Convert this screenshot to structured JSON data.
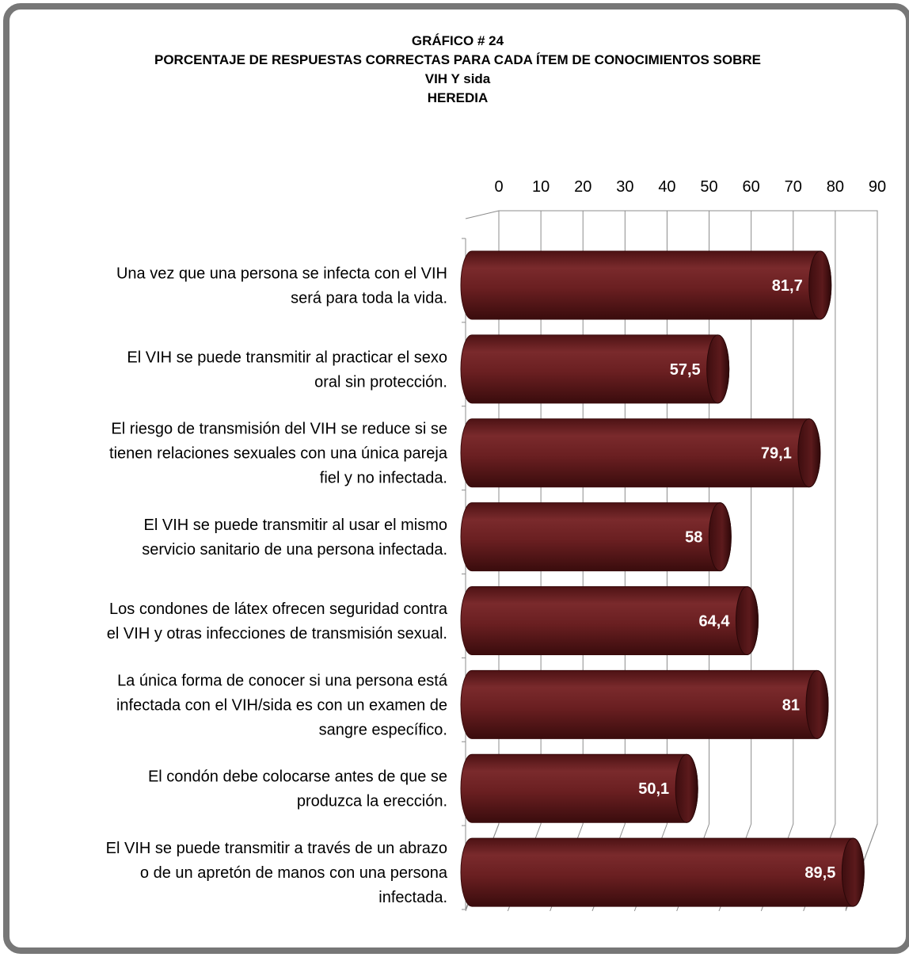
{
  "title_lines": [
    "GRÁFICO # 24",
    "PORCENTAJE DE RESPUESTAS CORRECTAS PARA CADA ÍTEM DE CONOCIMIENTOS SOBRE",
    "VIH Y sida",
    "HEREDIA"
  ],
  "chart_data": {
    "type": "bar",
    "orientation": "horizontal",
    "style": "3d-cylinder",
    "bar_color": "#6e1f22",
    "xlim": [
      0,
      90
    ],
    "ticks": [
      "0",
      "10",
      "20",
      "30",
      "40",
      "50",
      "60",
      "70",
      "80",
      "90"
    ],
    "tick_values": [
      0,
      10,
      20,
      30,
      40,
      50,
      60,
      70,
      80,
      90
    ],
    "axis_position": "top",
    "grid": true,
    "legend": "none",
    "categories": [
      [
        "Una vez que una persona se infecta con el VIH",
        "será para toda la vida."
      ],
      [
        "El VIH se puede transmitir al practicar el sexo",
        "oral sin protección."
      ],
      [
        "El riesgo de transmisión del VIH se reduce si se",
        "tienen relaciones sexuales con una única pareja",
        "fiel y no infectada."
      ],
      [
        "El VIH se puede transmitir al usar el mismo",
        "servicio sanitario de una persona infectada."
      ],
      [
        "Los condones de látex ofrecen seguridad contra",
        "el VIH y otras infecciones de transmisión sexual."
      ],
      [
        "La única forma de conocer si una persona está",
        "infectada con el VIH/sida es con un examen de",
        "sangre específico."
      ],
      [
        "El condón debe colocarse antes de que se",
        "produzca la erección."
      ],
      [
        "El VIH se puede transmitir a través de un abrazo",
        "o de un apretón de manos con una persona",
        "infectada."
      ]
    ],
    "values": [
      81.7,
      57.5,
      79.1,
      58,
      64.4,
      81,
      50.1,
      89.5
    ],
    "data_labels": [
      "81,7",
      "57,5",
      "79,1",
      "58",
      "64,4",
      "81",
      "50,1",
      "89,5"
    ]
  }
}
